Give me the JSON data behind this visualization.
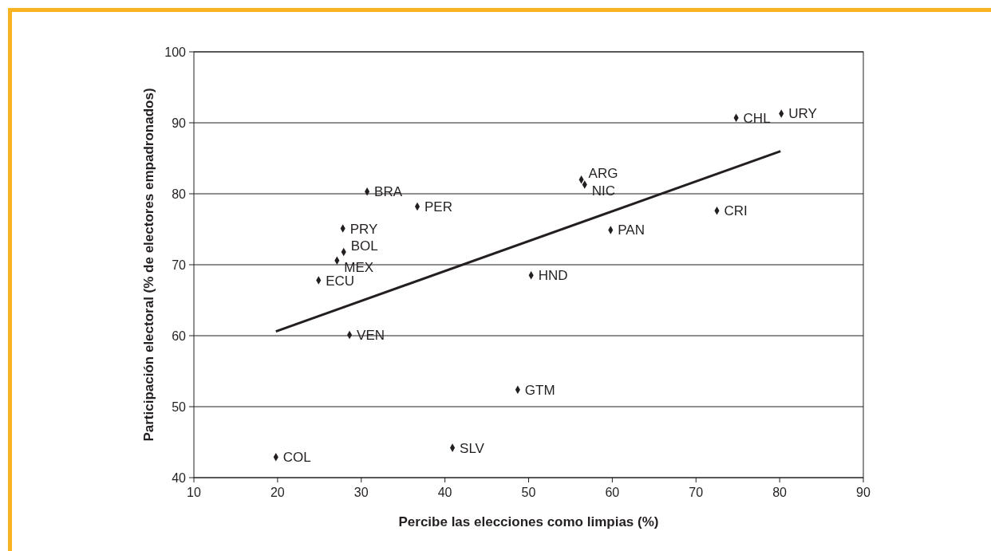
{
  "chart_data": {
    "type": "scatter",
    "xlabel": "Percibe las elecciones como limpias (%)",
    "ylabel": "Participación electoral (% de electores empadronados)",
    "xlim": [
      10,
      90
    ],
    "xticks": [
      10,
      20,
      30,
      40,
      50,
      60,
      70,
      80,
      90
    ],
    "ylim": [
      40,
      100
    ],
    "yticks": [
      40,
      50,
      60,
      70,
      80,
      90,
      100
    ],
    "grid": "y",
    "marker": "diamond",
    "series": [
      {
        "color": "#231f20",
        "x": [
          19.8,
          40.9,
          48.7,
          28.6,
          24.9,
          27.1,
          27.9,
          27.8,
          30.7,
          36.7,
          56.3,
          56.7,
          59.8,
          50.3,
          72.5,
          74.8,
          80.2
        ],
        "values": [
          42.9,
          44.2,
          52.4,
          60.1,
          67.8,
          70.6,
          71.8,
          75.1,
          80.3,
          78.2,
          82.0,
          81.3,
          74.9,
          68.5,
          77.6,
          90.7,
          91.3
        ]
      },
      {
        "type": "line",
        "marker": "none",
        "color": "#231f20",
        "x": [
          19.8,
          80.1
        ],
        "values": [
          60.6,
          86.0
        ]
      }
    ],
    "annotations": [
      {
        "text": "COL",
        "x": 19.8,
        "y": 42.9
      },
      {
        "text": "SLV",
        "x": 40.9,
        "y": 44.2
      },
      {
        "text": "GTM",
        "x": 48.7,
        "y": 52.4
      },
      {
        "text": "VEN",
        "x": 28.6,
        "y": 60.1
      },
      {
        "text": "ECU",
        "x": 24.9,
        "y": 67.8
      },
      {
        "text": "MEX",
        "x": 27.1,
        "y": 70.6
      },
      {
        "text": "BOL",
        "x": 27.9,
        "y": 71.8
      },
      {
        "text": "PRY",
        "x": 27.8,
        "y": 75.1
      },
      {
        "text": "BRA",
        "x": 30.7,
        "y": 80.3
      },
      {
        "text": "PER",
        "x": 36.7,
        "y": 78.2
      },
      {
        "text": "ARG",
        "x": 56.3,
        "y": 82.0
      },
      {
        "text": "NIC",
        "x": 56.7,
        "y": 81.3
      },
      {
        "text": "PAN",
        "x": 59.8,
        "y": 74.9
      },
      {
        "text": "HND",
        "x": 50.3,
        "y": 68.5
      },
      {
        "text": "CRI",
        "x": 72.5,
        "y": 77.6
      },
      {
        "text": "CHL",
        "x": 74.8,
        "y": 90.7
      },
      {
        "text": "URY",
        "x": 80.2,
        "y": 91.3
      }
    ]
  }
}
